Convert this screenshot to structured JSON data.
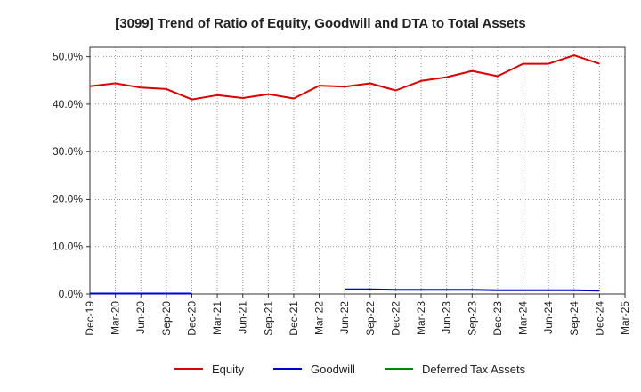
{
  "chart_data": {
    "type": "line",
    "title": "[3099]  Trend of Ratio of Equity, Goodwill and DTA to Total Assets",
    "xlabel": "",
    "ylabel": "",
    "ylim": [
      0,
      52
    ],
    "y_ticks": [
      "0.0%",
      "10.0%",
      "20.0%",
      "30.0%",
      "40.0%",
      "50.0%"
    ],
    "y_tick_values": [
      0,
      10,
      20,
      30,
      40,
      50
    ],
    "x": [
      "Dec-19",
      "Mar-20",
      "Jun-20",
      "Sep-20",
      "Dec-20",
      "Mar-21",
      "Jun-21",
      "Sep-21",
      "Dec-21",
      "Mar-22",
      "Jun-22",
      "Sep-22",
      "Dec-22",
      "Mar-23",
      "Jun-23",
      "Sep-23",
      "Dec-23",
      "Mar-24",
      "Jun-24",
      "Sep-24",
      "Dec-24",
      "Mar-25"
    ],
    "grid": true,
    "legend_position": "bottom",
    "series": [
      {
        "name": "Equity",
        "color": "#dd0000",
        "values": [
          43.8,
          44.4,
          43.5,
          43.2,
          41.0,
          41.9,
          41.3,
          42.1,
          41.2,
          43.9,
          43.7,
          44.4,
          42.9,
          44.9,
          45.7,
          47.0,
          45.9,
          48.5,
          48.5,
          50.3,
          48.5,
          null
        ]
      },
      {
        "name": "Goodwill",
        "color": "#0000cc",
        "values": [
          0.1,
          0.1,
          0.1,
          0.1,
          0.1,
          null,
          null,
          null,
          null,
          null,
          1.0,
          1.0,
          0.9,
          0.9,
          0.9,
          0.9,
          0.8,
          0.8,
          0.8,
          0.8,
          0.7,
          null
        ]
      },
      {
        "name": "Deferred Tax Assets",
        "color": "#008800",
        "values": [
          null,
          null,
          null,
          null,
          null,
          null,
          null,
          null,
          null,
          null,
          null,
          null,
          null,
          null,
          null,
          null,
          null,
          null,
          null,
          null,
          null,
          null
        ]
      }
    ]
  }
}
